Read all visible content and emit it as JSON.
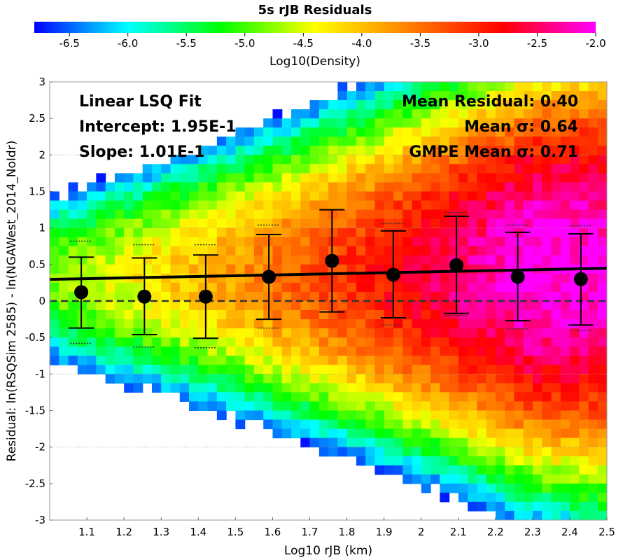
{
  "chart_data": {
    "type": "heatmap",
    "title": "5s rJB Residuals",
    "colorbar": {
      "label": "Log10(Density)",
      "range": [
        -6.8,
        -2.0
      ],
      "ticks": [
        "-6.5",
        "-6.0",
        "-5.5",
        "-5.0",
        "-4.5",
        "-4.0",
        "-3.5",
        "-3.0",
        "-2.5",
        "-2.0"
      ],
      "tick_values": [
        -6.5,
        -6.0,
        -5.5,
        -5.0,
        -4.5,
        -4.0,
        -3.5,
        -3.0,
        -2.5,
        -2.0
      ],
      "colormap": [
        "#0000ff",
        "#00ffff",
        "#00ff00",
        "#ffff00",
        "#ff8000",
        "#ff0000",
        "#ff00ff"
      ]
    },
    "xlabel": "Log10 rJB (km)",
    "ylabel": "Residual: ln(RSQSim 2585) - ln(NGAWest_2014_NoIdr)",
    "xlim": [
      1.0,
      2.5
    ],
    "ylim": [
      -3,
      3
    ],
    "xticks": [
      "1.1",
      "1.2",
      "1.3",
      "1.4",
      "1.5",
      "1.6",
      "1.7",
      "1.8",
      "1.9",
      "2",
      "2.1",
      "2.2",
      "2.3",
      "2.4",
      "2.5"
    ],
    "xtick_values": [
      1.1,
      1.2,
      1.3,
      1.4,
      1.5,
      1.6,
      1.7,
      1.8,
      1.9,
      2.0,
      2.1,
      2.2,
      2.3,
      2.4,
      2.5
    ],
    "yticks": [
      "-3",
      "-2.5",
      "-2",
      "-1.5",
      "-1",
      "-0.5",
      "0",
      "0.5",
      "1",
      "1.5",
      "2",
      "2.5",
      "3"
    ],
    "ytick_values": [
      -3,
      -2.5,
      -2,
      -1.5,
      -1,
      -0.5,
      0,
      0.5,
      1,
      1.5,
      2,
      2.5,
      3
    ],
    "gridlines_y": [
      -2,
      -1,
      1,
      2
    ],
    "fit_line": {
      "intercept": 0.195,
      "slope": 0.101,
      "x_range": [
        1.0,
        2.5
      ]
    },
    "zero_line": 0,
    "binned_means": [
      {
        "x": 1.085,
        "mean": 0.12,
        "low": -0.37,
        "high": 0.6,
        "gmpe_low": -0.58,
        "gmpe_high": 0.82
      },
      {
        "x": 1.255,
        "mean": 0.06,
        "low": -0.46,
        "high": 0.59,
        "gmpe_low": -0.63,
        "gmpe_high": 0.77
      },
      {
        "x": 1.42,
        "mean": 0.06,
        "low": -0.51,
        "high": 0.63,
        "gmpe_low": -0.64,
        "gmpe_high": 0.77
      },
      {
        "x": 1.59,
        "mean": 0.33,
        "low": -0.25,
        "high": 0.91,
        "gmpe_low": -0.37,
        "gmpe_high": 1.04
      },
      {
        "x": 1.76,
        "mean": 0.55,
        "low": -0.15,
        "high": 1.25,
        "gmpe_low": -0.15,
        "gmpe_high": 1.25
      },
      {
        "x": 1.925,
        "mean": 0.36,
        "low": -0.23,
        "high": 0.96,
        "gmpe_low": -0.33,
        "gmpe_high": 1.06
      },
      {
        "x": 2.095,
        "mean": 0.49,
        "low": -0.17,
        "high": 1.16,
        "gmpe_low": -0.2,
        "gmpe_high": 1.21
      },
      {
        "x": 2.26,
        "mean": 0.33,
        "low": -0.27,
        "high": 0.94,
        "gmpe_low": -0.38,
        "gmpe_high": 1.04
      },
      {
        "x": 2.43,
        "mean": 0.3,
        "low": -0.33,
        "high": 0.92,
        "gmpe_low": -0.4,
        "gmpe_high": 1.03
      }
    ],
    "annotations_left": [
      "Linear LSQ Fit",
      "Intercept: 1.95E-1",
      "Slope: 1.01E-1"
    ],
    "annotations_right": [
      "Mean Residual: 0.40",
      "Mean σ: 0.64",
      "GMPE Mean σ: 0.71"
    ],
    "stats": {
      "intercept": 0.195,
      "slope": 0.101,
      "mean_residual": 0.4,
      "mean_sigma": 0.64,
      "gmpe_mean_sigma": 0.71
    }
  }
}
